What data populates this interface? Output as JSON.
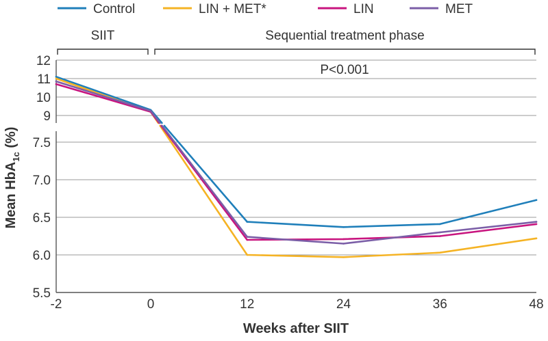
{
  "chart_data": {
    "type": "line",
    "legend": [
      {
        "name": "Control",
        "color": "#1f7fba"
      },
      {
        "name": "LIN + MET*",
        "color": "#f5b324"
      },
      {
        "name": "LIN",
        "color": "#c8157f"
      },
      {
        "name": "MET",
        "color": "#7b5ea7"
      }
    ],
    "phases": [
      {
        "label": "SIIT",
        "from": -2,
        "to": 0
      },
      {
        "label": "Sequential treatment phase",
        "from": 0,
        "to": 48
      }
    ],
    "annotation": "P<0.001",
    "xlabel": "Weeks after SIIT",
    "ylabel_main": "Mean HbA",
    "ylabel_sub": "1c",
    "ylabel_unit": " (%)",
    "x_ticks": [
      "-2",
      "0",
      "12",
      "24",
      "36",
      "48"
    ],
    "x_values": [
      -2,
      0,
      12,
      24,
      36,
      48
    ],
    "y_ticks_upper": [
      "12",
      "11",
      "10",
      "9"
    ],
    "y_ticks_lower": [
      "7.5",
      "7.0",
      "6.5",
      "6.0",
      "5.5"
    ],
    "upper_ylim": [
      8.5,
      12
    ],
    "lower_ylim": [
      5.5,
      7.7
    ],
    "axis_break": true,
    "grid": true,
    "series": [
      {
        "name": "Control",
        "color": "#1f7fba",
        "x": [
          -2,
          0,
          12,
          24,
          36,
          48
        ],
        "y": [
          11.1,
          9.3,
          6.44,
          6.37,
          6.41,
          6.73
        ]
      },
      {
        "name": "LIN + MET*",
        "color": "#f5b324",
        "x": [
          -2,
          0,
          12,
          24,
          36,
          48
        ],
        "y": [
          11.0,
          9.2,
          6.0,
          5.97,
          6.03,
          6.22
        ]
      },
      {
        "name": "LIN",
        "color": "#c8157f",
        "x": [
          -2,
          0,
          12,
          24,
          36,
          48
        ],
        "y": [
          10.7,
          9.2,
          6.2,
          6.21,
          6.25,
          6.41
        ]
      },
      {
        "name": "MET",
        "color": "#7b5ea7",
        "x": [
          -2,
          0,
          12,
          24,
          36,
          48
        ],
        "y": [
          10.85,
          9.25,
          6.24,
          6.15,
          6.3,
          6.44
        ]
      }
    ]
  }
}
